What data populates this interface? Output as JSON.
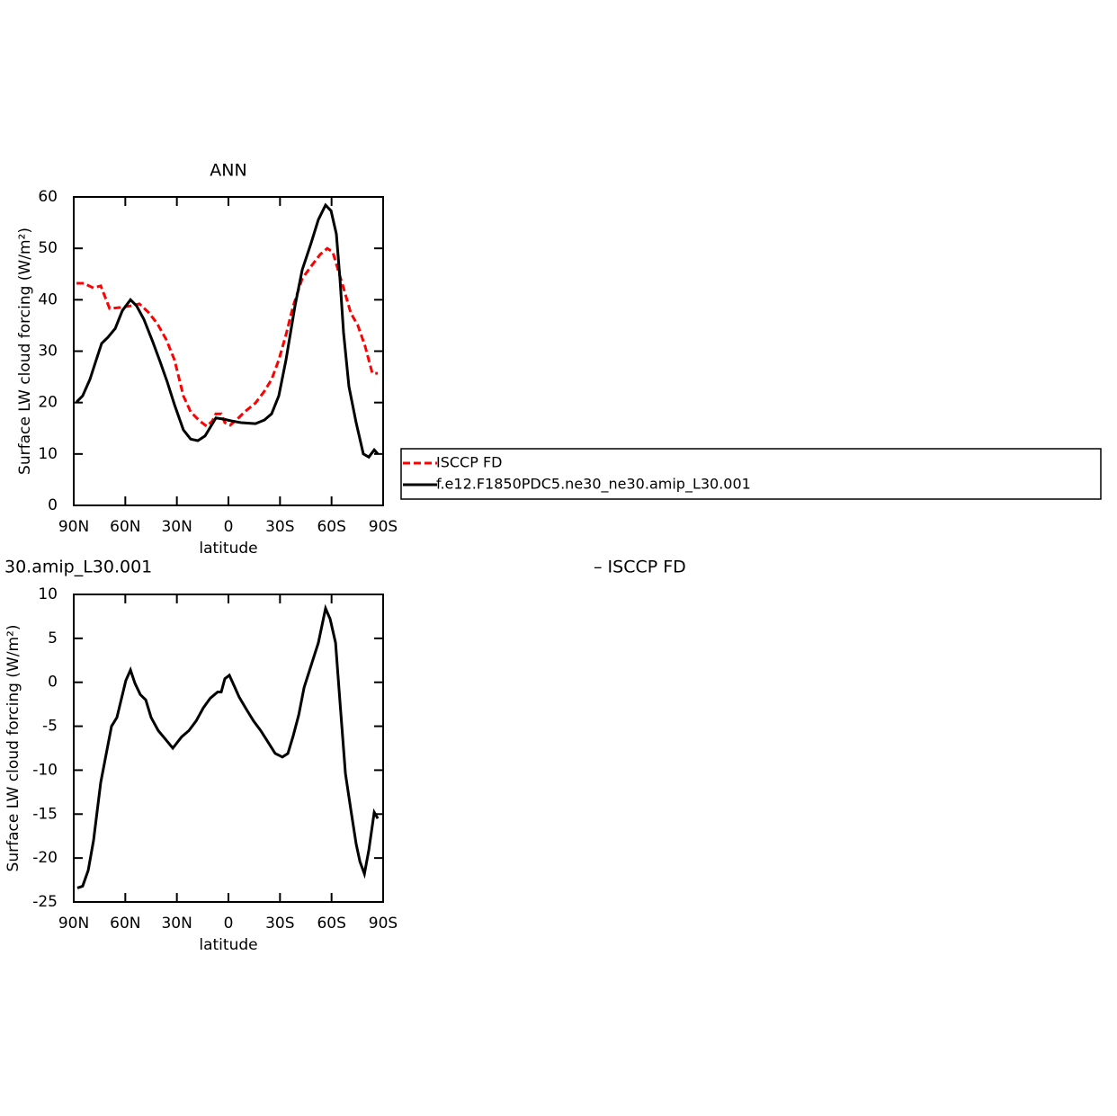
{
  "chart_data": [
    {
      "type": "line",
      "title": "ANN",
      "xlabel": "latitude",
      "ylabel": "Surface LW cloud forcing (W/m²)",
      "xlim": [
        90,
        -90
      ],
      "ylim": [
        0,
        60
      ],
      "xticks": [
        {
          "value": 90,
          "label": "90N"
        },
        {
          "value": 60,
          "label": "60N"
        },
        {
          "value": 30,
          "label": "30N"
        },
        0,
        {
          "value": -30,
          "label": "30S"
        },
        {
          "value": -60,
          "label": "60S"
        },
        {
          "value": -90,
          "label": "90S"
        }
      ],
      "yticks": [
        0,
        10,
        20,
        30,
        40,
        50,
        60
      ],
      "legend": "right",
      "series": [
        {
          "name": "ISCCP FD",
          "color": "#ff0000",
          "dashed": true,
          "x": [
            88.4,
            84.2,
            78.5,
            74.3,
            69.1,
            62.8,
            57.0,
            51.8,
            46.6,
            41.3,
            36.1,
            31.4,
            26.2,
            22.0,
            16.7,
            12.6,
            9.4,
            7.3,
            4.2,
            2.1,
            -1.0,
            -5.2,
            -9.4,
            -15.7,
            -20.9,
            -25.1,
            -29.3,
            -33.5,
            -37.7,
            -42.9,
            -48.1,
            -53.3,
            -57.5,
            -60.7,
            -63.8,
            -67.0,
            -71.2,
            -75.3,
            -79.5,
            -83.7,
            -86.9
          ],
          "values": [
            43.2,
            43.2,
            42.3,
            42.7,
            38.3,
            38.5,
            38.8,
            39.2,
            37.6,
            35.3,
            32.2,
            28.3,
            21.3,
            18.2,
            16.4,
            15.4,
            16.4,
            17.8,
            17.8,
            16.1,
            15.6,
            16.8,
            18.2,
            19.9,
            22.2,
            24.5,
            28.3,
            33.2,
            38.8,
            44.1,
            46.5,
            48.8,
            50.0,
            49.3,
            45.8,
            42.3,
            37.4,
            35.0,
            31.0,
            25.7,
            25.7
          ]
        },
        {
          "name": "f.e12.F1850PDC5.ne30_ne30.amip_L30.001",
          "color": "#000000",
          "dashed": false,
          "x": [
            88.4,
            84.8,
            80.6,
            76.9,
            73.8,
            70.1,
            65.9,
            61.7,
            57.0,
            53.4,
            49.2,
            44.0,
            39.8,
            35.6,
            31.4,
            26.2,
            22.0,
            17.8,
            13.6,
            7.3,
            3.1,
            -2.1,
            -7.3,
            -15.7,
            -20.9,
            -25.1,
            -29.3,
            -33.5,
            -38.7,
            -42.9,
            -48.1,
            -52.3,
            -56.5,
            -59.7,
            -62.8,
            -64.9,
            -67.0,
            -70.1,
            -74.3,
            -78.5,
            -81.7,
            -84.8,
            -86.9
          ],
          "values": [
            20.1,
            21.3,
            24.5,
            28.3,
            31.5,
            32.7,
            34.4,
            37.9,
            40.0,
            38.8,
            36.2,
            31.8,
            28.0,
            24.0,
            19.6,
            14.7,
            12.9,
            12.6,
            13.5,
            17.0,
            16.8,
            16.4,
            16.1,
            15.9,
            16.6,
            17.8,
            21.3,
            28.3,
            38.8,
            45.8,
            51.0,
            55.6,
            58.4,
            57.3,
            52.8,
            44.1,
            33.6,
            23.1,
            16.1,
            10.0,
            9.4,
            10.8,
            10.0
          ]
        }
      ]
    },
    {
      "type": "line",
      "title": "30.amip_L30.001",
      "subtitle": "– ISCCP FD",
      "xlabel": "latitude",
      "ylabel": "Surface LW cloud forcing (W/m²)",
      "xlim": [
        90,
        -90
      ],
      "ylim": [
        -25,
        10
      ],
      "xticks": [
        {
          "value": 90,
          "label": "90N"
        },
        {
          "value": 60,
          "label": "60N"
        },
        {
          "value": 30,
          "label": "30N"
        },
        0,
        {
          "value": -30,
          "label": "30S"
        },
        {
          "value": -60,
          "label": "60S"
        },
        {
          "value": -90,
          "label": "90S"
        }
      ],
      "yticks": [
        -25,
        -20,
        -15,
        -10,
        -5,
        0,
        5,
        10
      ],
      "series": [
        {
          "color": "#000000",
          "dashed": false,
          "x": [
            87.9,
            84.8,
            81.6,
            78.5,
            74.3,
            68.0,
            64.9,
            59.7,
            57.0,
            54.4,
            51.3,
            48.1,
            45.0,
            40.8,
            36.6,
            32.4,
            27.2,
            23.0,
            18.8,
            14.6,
            10.5,
            6.3,
            4.2,
            2.1,
            -0.5,
            -3.1,
            -6.3,
            -10.5,
            -14.6,
            -18.8,
            -23.0,
            -27.2,
            -31.4,
            -34.6,
            -37.7,
            -40.9,
            -44.0,
            -48.1,
            -52.3,
            -56.5,
            -59.2,
            -62.3,
            -64.9,
            -68.1,
            -71.2,
            -74.3,
            -76.5,
            -79.1,
            -81.7,
            -84.8,
            -86.9
          ],
          "values": [
            -23.4,
            -23.2,
            -21.4,
            -18.0,
            -11.4,
            -5.0,
            -4.0,
            0.2,
            1.4,
            -0.1,
            -1.4,
            -2.0,
            -4.0,
            -5.5,
            -6.5,
            -7.5,
            -6.2,
            -5.5,
            -4.4,
            -2.9,
            -1.8,
            -1.1,
            -1.1,
            0.4,
            0.8,
            -0.3,
            -1.7,
            -3.1,
            -4.4,
            -5.5,
            -6.8,
            -8.1,
            -8.5,
            -8.1,
            -6.1,
            -3.7,
            -0.6,
            1.9,
            4.5,
            8.4,
            7.2,
            4.5,
            -2.2,
            -10.4,
            -14.5,
            -18.4,
            -20.4,
            -21.8,
            -19.1,
            -14.8,
            -15.5
          ]
        }
      ]
    }
  ]
}
